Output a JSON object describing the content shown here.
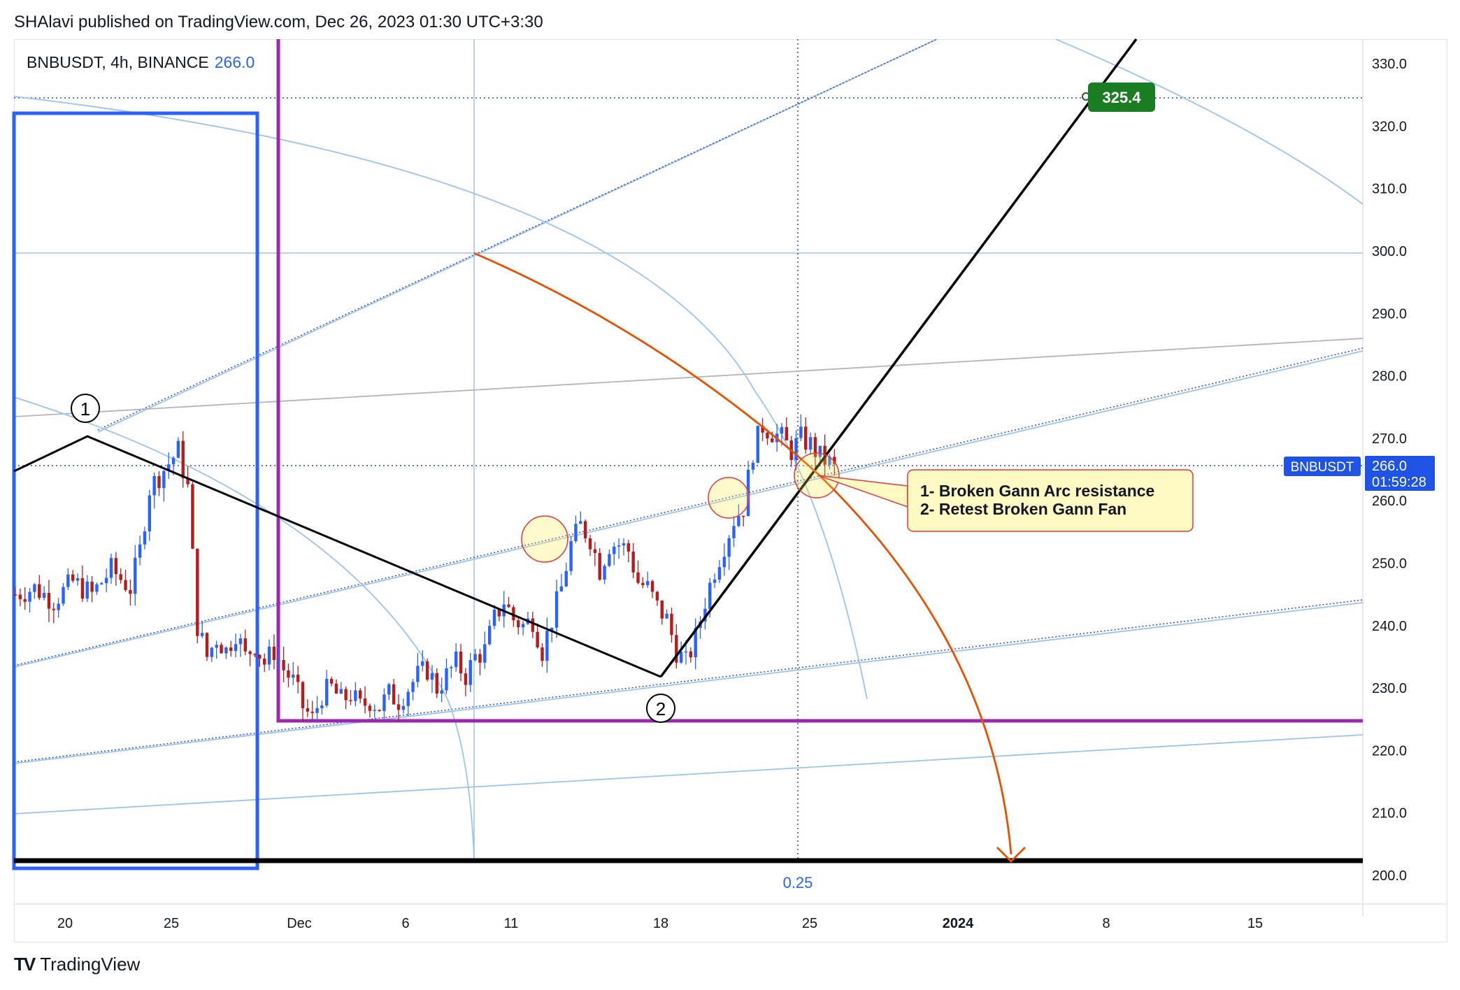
{
  "header": {
    "published_text": "SHAlavi published on TradingView.com, Dec 26, 2023 01:30 UTC+3:30"
  },
  "legend": {
    "symbol_text": "BNBUSDT, 4h, BINANCE",
    "last_price": "266.0"
  },
  "footer": {
    "brand": "TradingView",
    "logo_text": "TV"
  },
  "chart_data": {
    "type": "candlestick",
    "symbol": "BNBUSDT",
    "interval": "4h",
    "exchange": "BINANCE",
    "y_range": [
      195,
      335
    ],
    "y_ticks": [
      "330.0",
      "320.0",
      "310.0",
      "300.0",
      "290.0",
      "280.0",
      "270.0",
      "260.0",
      "250.0",
      "240.0",
      "230.0",
      "220.0",
      "210.0",
      "200.0"
    ],
    "x_ticks": [
      {
        "label": "20",
        "bold": false
      },
      {
        "label": "25",
        "bold": false
      },
      {
        "label": "Dec",
        "bold": false
      },
      {
        "label": "6",
        "bold": false
      },
      {
        "label": "11",
        "bold": false
      },
      {
        "label": "18",
        "bold": false
      },
      {
        "label": "25",
        "bold": false
      },
      {
        "label": "2024",
        "bold": true
      },
      {
        "label": "8",
        "bold": false
      },
      {
        "label": "15",
        "bold": false
      }
    ],
    "current_price": {
      "symbol_tag": "BNBUSDT",
      "value": "266.0",
      "countdown": "01:59:28"
    },
    "target": {
      "value": "325.4"
    },
    "fib_label": "0.25",
    "pivots": [
      {
        "label": "1",
        "note": "swing high"
      },
      {
        "label": "2",
        "note": "swing low"
      }
    ],
    "annotation": {
      "lines": [
        "1- Broken Gann Arc resistance",
        "2- Retest Broken Gann Fan"
      ]
    },
    "price_path": [
      [
        0,
        245
      ],
      [
        4,
        246
      ],
      [
        8,
        244
      ],
      [
        12,
        247
      ],
      [
        16,
        245
      ],
      [
        20,
        249
      ],
      [
        24,
        246
      ],
      [
        26,
        252
      ],
      [
        28,
        262
      ],
      [
        30,
        264
      ],
      [
        32,
        266
      ],
      [
        34,
        268
      ],
      [
        36,
        262
      ],
      [
        38,
        240
      ],
      [
        40,
        235
      ],
      [
        42,
        238
      ],
      [
        44,
        236
      ],
      [
        46,
        239
      ],
      [
        48,
        235
      ],
      [
        50,
        237
      ],
      [
        52,
        234
      ],
      [
        54,
        236
      ],
      [
        56,
        233
      ],
      [
        58,
        231
      ],
      [
        60,
        227
      ],
      [
        62,
        225
      ],
      [
        64,
        229
      ],
      [
        66,
        230
      ],
      [
        68,
        228
      ],
      [
        70,
        229
      ],
      [
        72,
        227
      ],
      [
        74,
        228
      ],
      [
        76,
        227
      ],
      [
        78,
        229
      ],
      [
        80,
        228
      ],
      [
        82,
        230
      ],
      [
        84,
        232
      ],
      [
        86,
        233
      ],
      [
        88,
        230
      ],
      [
        90,
        232
      ],
      [
        92,
        234
      ],
      [
        94,
        232
      ],
      [
        96,
        235
      ],
      [
        98,
        236
      ],
      [
        100,
        241
      ],
      [
        102,
        244
      ],
      [
        104,
        241
      ],
      [
        106,
        240
      ],
      [
        108,
        241
      ],
      [
        110,
        236
      ],
      [
        112,
        241
      ],
      [
        114,
        246
      ],
      [
        116,
        253
      ],
      [
        118,
        256
      ],
      [
        120,
        254
      ],
      [
        122,
        249
      ],
      [
        124,
        253
      ],
      [
        126,
        253
      ],
      [
        128,
        252
      ],
      [
        130,
        247
      ],
      [
        132,
        246
      ],
      [
        134,
        243
      ],
      [
        136,
        241
      ],
      [
        138,
        236
      ],
      [
        140,
        234
      ],
      [
        142,
        238
      ],
      [
        144,
        244
      ],
      [
        146,
        249
      ],
      [
        148,
        253
      ],
      [
        150,
        257
      ],
      [
        152,
        259
      ],
      [
        154,
        268
      ],
      [
        156,
        272
      ],
      [
        158,
        271
      ],
      [
        160,
        270
      ],
      [
        162,
        268
      ],
      [
        164,
        270
      ],
      [
        166,
        269
      ],
      [
        168,
        267
      ],
      [
        170,
        266
      ],
      [
        171,
        265
      ]
    ]
  }
}
